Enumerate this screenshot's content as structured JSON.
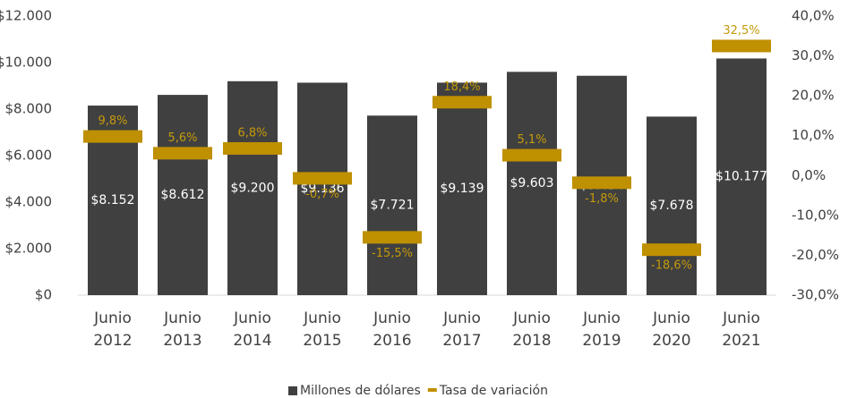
{
  "chart_data": {
    "type": "bar-line",
    "categories": [
      [
        "Junio",
        "2012"
      ],
      [
        "Junio",
        "2013"
      ],
      [
        "Junio",
        "2014"
      ],
      [
        "Junio",
        "2015"
      ],
      [
        "Junio",
        "2016"
      ],
      [
        "Junio",
        "2017"
      ],
      [
        "Junio",
        "2018"
      ],
      [
        "Junio",
        "2019"
      ],
      [
        "Junio",
        "2020"
      ],
      [
        "Junio",
        "2021"
      ]
    ],
    "series": [
      {
        "name": "Millones de dólares",
        "color": "#404040",
        "type": "bar",
        "values": [
          8152,
          8612,
          9200,
          9136,
          7721,
          9139,
          9603,
          9434,
          7678,
          10177
        ],
        "value_labels": [
          "$8.152",
          "$8.612",
          "$9.200",
          "$9.136",
          "$7.721",
          "$9.139",
          "$9.603",
          "$9.434",
          "$7.678",
          "$10.177"
        ]
      },
      {
        "name": "Tasa de variación",
        "color": "#bf9000",
        "type": "marker",
        "axis": "y2",
        "values": [
          9.8,
          5.6,
          6.8,
          -0.7,
          -15.5,
          18.4,
          5.1,
          -1.8,
          -18.6,
          32.5
        ],
        "value_labels": [
          "9,8%",
          "5,6%",
          "6,8%",
          "-0,7%",
          "-15,5%",
          "18,4%",
          "5,1%",
          "-1,8%",
          "-18,6%",
          "32,5%"
        ]
      }
    ],
    "ylim": [
      0,
      12000
    ],
    "yticks": [
      {
        "value": 0,
        "label": "$0"
      },
      {
        "value": 2000,
        "label": "$2.000"
      },
      {
        "value": 4000,
        "label": "$4.000"
      },
      {
        "value": 6000,
        "label": "$6.000"
      },
      {
        "value": 8000,
        "label": "$8.000"
      },
      {
        "value": 10000,
        "label": "$10.000"
      },
      {
        "value": 12000,
        "label": "$12.000"
      }
    ],
    "y2lim": [
      -30,
      40
    ],
    "y2ticks": [
      {
        "value": -30,
        "label": "-30,0%"
      },
      {
        "value": -20,
        "label": "-20,0%"
      },
      {
        "value": -10,
        "label": "-10,0%"
      },
      {
        "value": 0,
        "label": "0,0%"
      },
      {
        "value": 10,
        "label": "10,0%"
      },
      {
        "value": 20,
        "label": "20,0%"
      },
      {
        "value": 30,
        "label": "30,0%"
      },
      {
        "value": 40,
        "label": "40,0%"
      }
    ],
    "legend": "bottom"
  }
}
